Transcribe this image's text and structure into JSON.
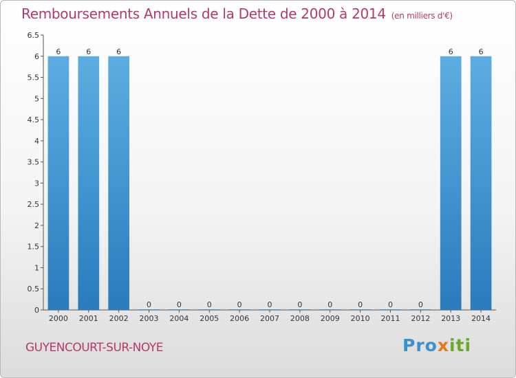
{
  "chart_data": {
    "type": "bar",
    "title": "Remboursements Annuels de la Dette de 2000 à 2014",
    "subtitle": "(en milliers d'€)",
    "categories": [
      "2000",
      "2001",
      "2002",
      "2003",
      "2004",
      "2005",
      "2006",
      "2007",
      "2008",
      "2009",
      "2010",
      "2011",
      "2012",
      "2013",
      "2014"
    ],
    "values": [
      6,
      6,
      6,
      0,
      0,
      0,
      0,
      0,
      0,
      0,
      0,
      0,
      0,
      6,
      6
    ],
    "data_labels": [
      "6",
      "6",
      "6",
      "0",
      "0",
      "0",
      "0",
      "0",
      "0",
      "0",
      "0",
      "0",
      "0",
      "6",
      "6"
    ],
    "ylim": [
      0,
      6.5
    ],
    "y_ticks": [
      0,
      0.5,
      1,
      1.5,
      2,
      2.5,
      3,
      3.5,
      4,
      4.5,
      5,
      5.5,
      6,
      6.5
    ],
    "y_tick_labels": [
      "0",
      "0.5",
      "1",
      "1.5",
      "2",
      "2.5",
      "3",
      "3.5",
      "4",
      "4.5",
      "5",
      "5.5",
      "6",
      "6.5"
    ],
    "xlabel": "",
    "ylabel": "",
    "grid": false,
    "colors": {
      "bar": "#4a9ad8",
      "bar_top": "#5dade2",
      "bar_bottom": "#2b7bbd",
      "axis": "#555555",
      "title": "#b5386a"
    }
  },
  "footer": {
    "location": "GUYENCOURT-SUR-NOYE",
    "logo": {
      "part1": "Pro",
      "part2": "x",
      "part3": "iti"
    }
  }
}
